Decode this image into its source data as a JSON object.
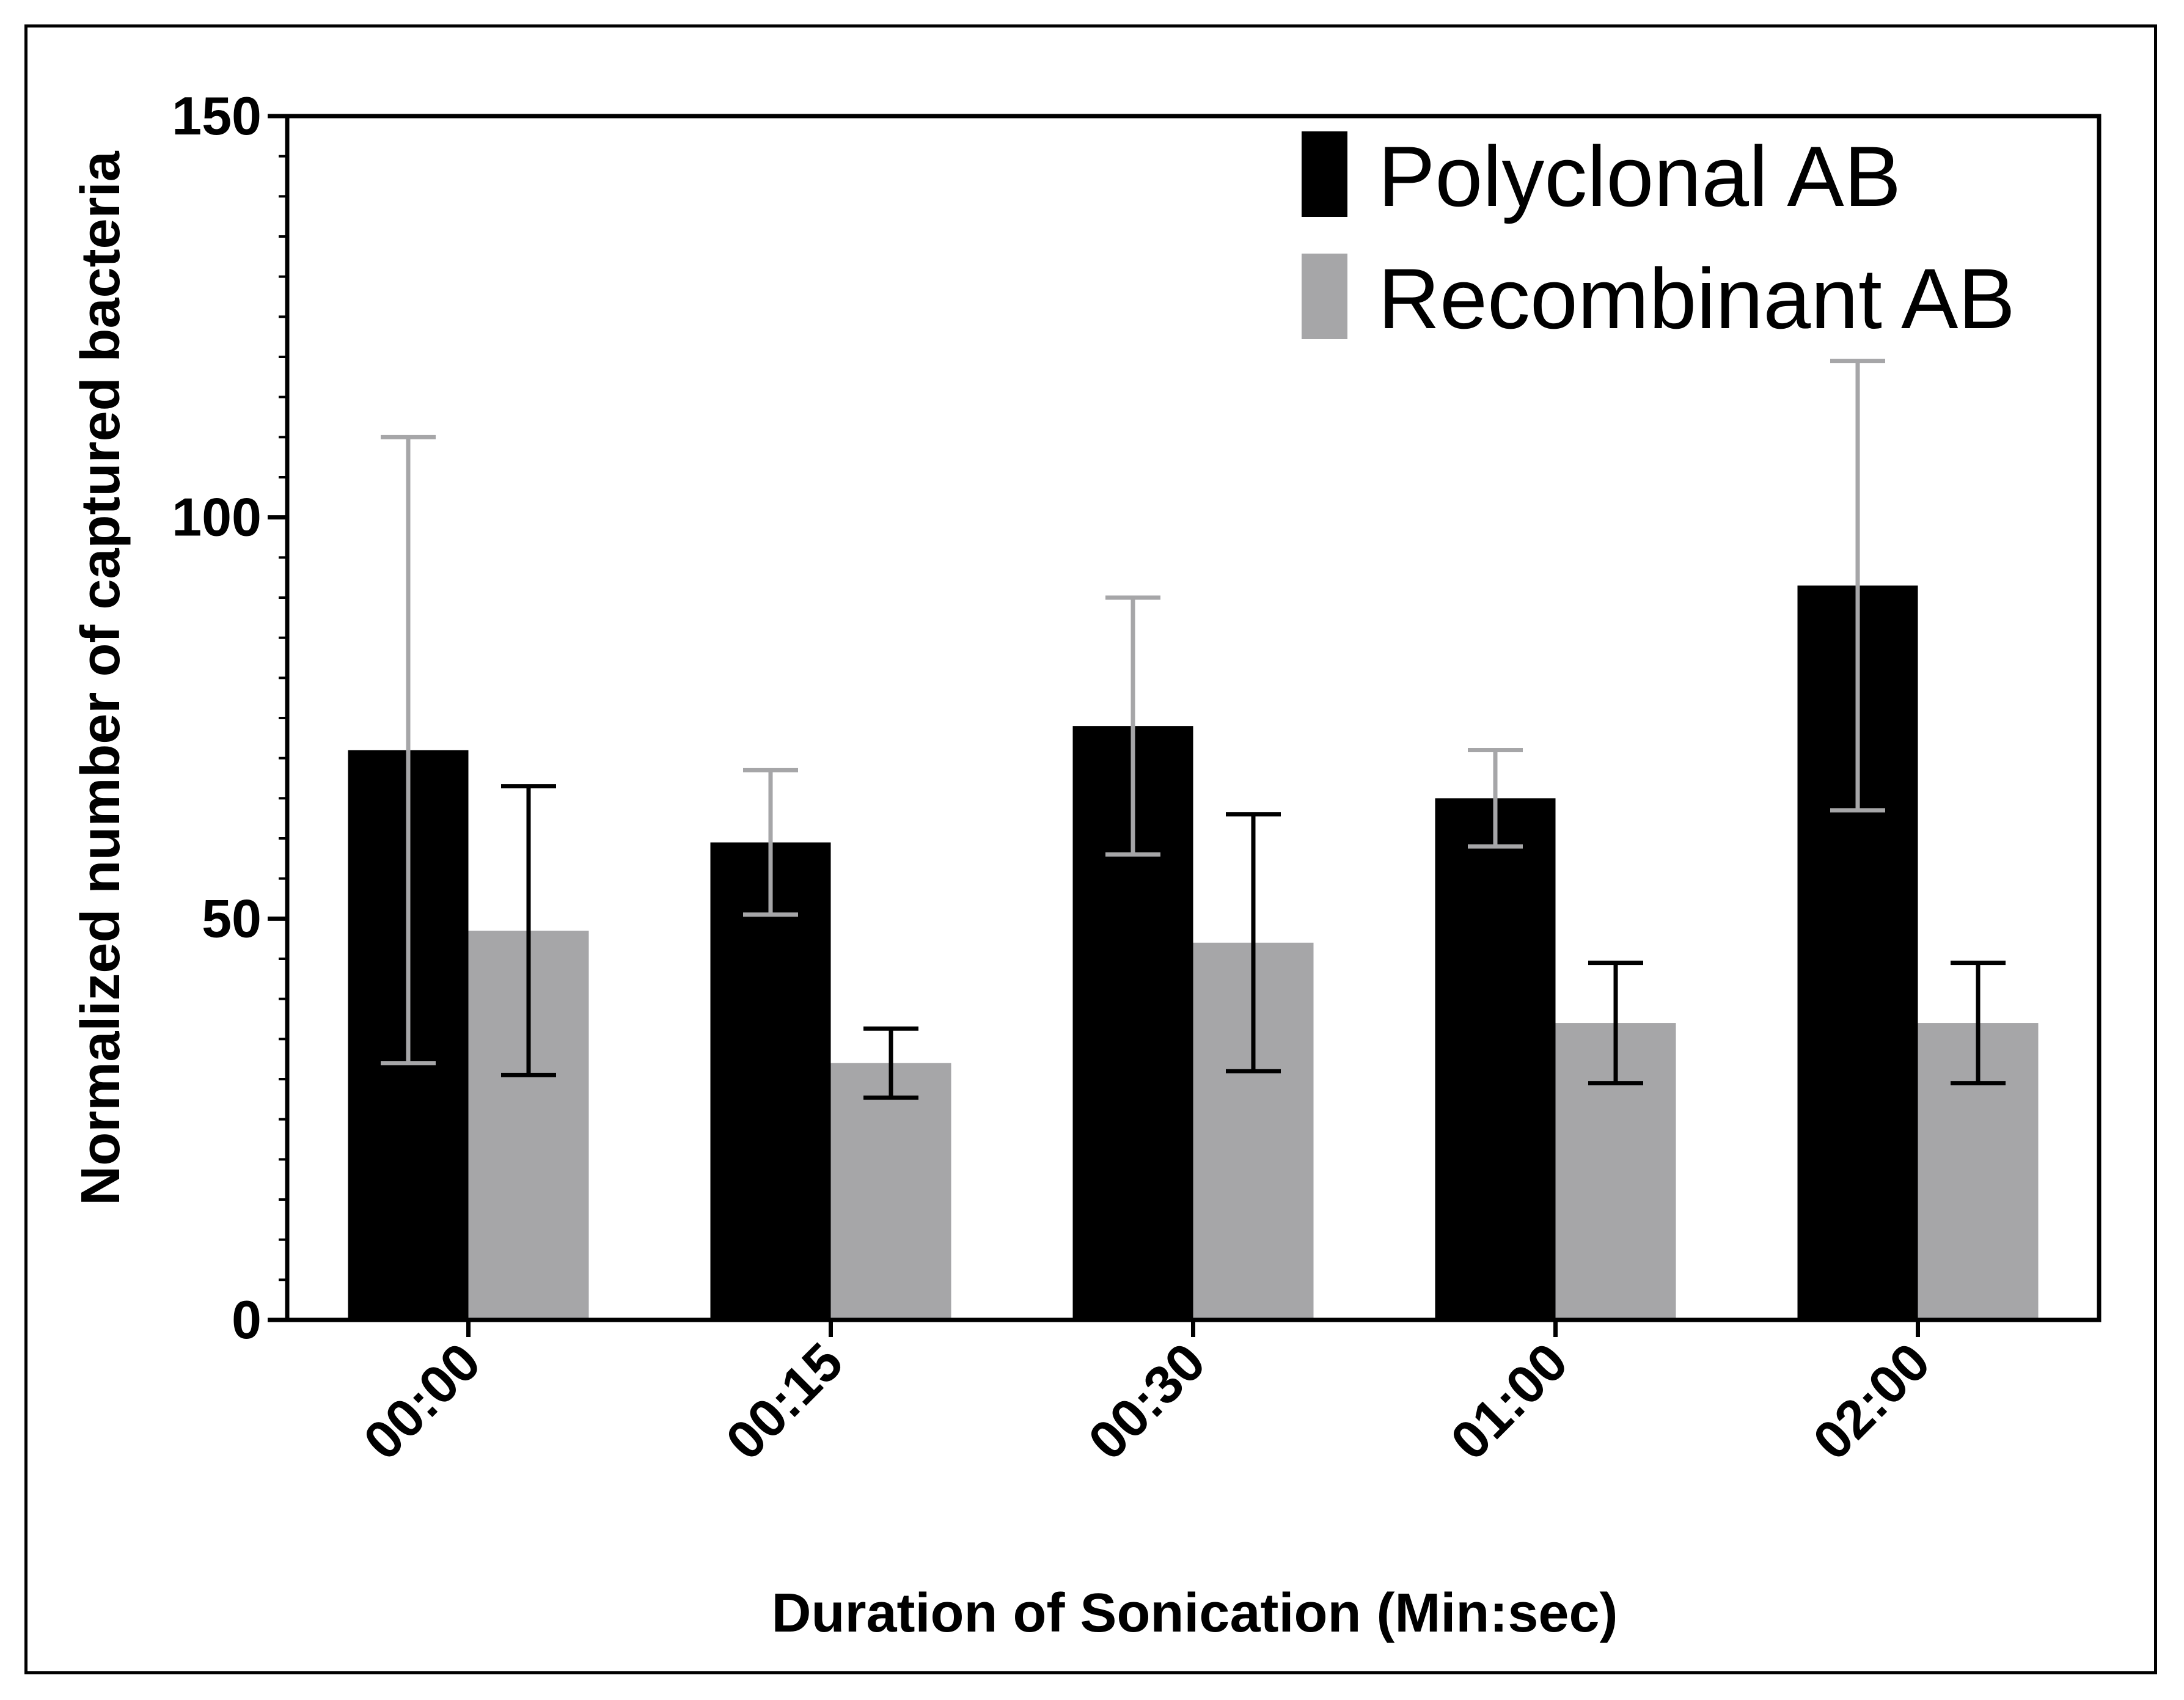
{
  "chart_data": {
    "type": "bar",
    "title": "",
    "xlabel": "Duration of Sonication (Min:sec)",
    "ylabel": "Normalized number of captured bacteria",
    "categories": [
      "00:00",
      "00:15",
      "00:30",
      "01:00",
      "02:00"
    ],
    "ylim": [
      0,
      150
    ],
    "yticks": [
      0,
      50,
      100,
      150
    ],
    "grid": false,
    "legend_position": "top-right",
    "series": [
      {
        "name": "Polyclonal AB",
        "color": "#000000",
        "error_color": "#a6a6a8",
        "values": [
          71,
          59.5,
          74,
          65,
          91.5
        ],
        "error": [
          39,
          9,
          16,
          6,
          28
        ]
      },
      {
        "name": "Recombinant AB",
        "color": "#a6a6a8",
        "error_color": "#000000",
        "values": [
          48.5,
          32,
          47,
          37,
          37
        ],
        "error": [
          18,
          4.3,
          16,
          7.5,
          7.5
        ]
      }
    ]
  }
}
